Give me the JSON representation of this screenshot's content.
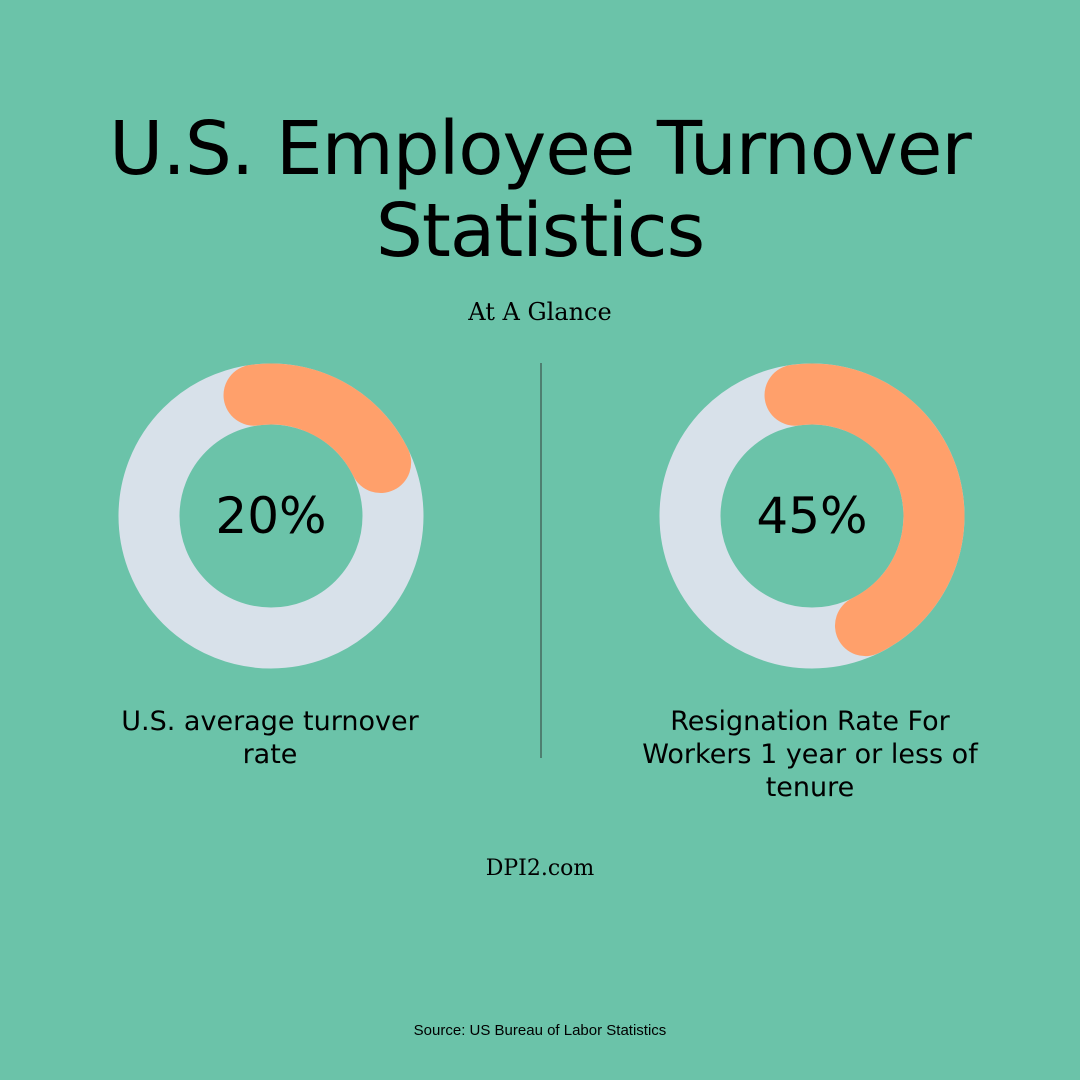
{
  "title": "U.S. Employee Turnover Statistics",
  "subtitle": "At A Glance",
  "site": "DPI2.com",
  "source": "Source: US Bureau of Labor Statistics",
  "colors": {
    "background": "#6BC3A9",
    "track": "#D8E1EA",
    "accent": "#FFA06B",
    "divider": "#4E7F70",
    "text": "#000000"
  },
  "chart_data": [
    {
      "type": "pie",
      "value": 20,
      "label": "20%",
      "caption": "U.S. average turnover rate"
    },
    {
      "type": "pie",
      "value": 45,
      "label": "45%",
      "caption": "Resignation Rate For Workers 1 year or less of tenure"
    }
  ]
}
